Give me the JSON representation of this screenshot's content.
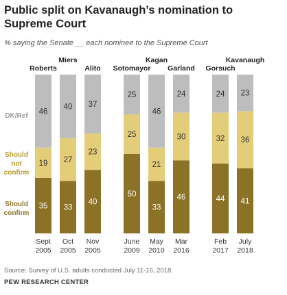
{
  "title": "Public split on Kavanaugh’s nomination to Supreme Court",
  "subtitle": "% saying the Senate __ each nominee to the Supreme Court",
  "source": "Source: Survey of U.S. adults conducted July 11-15, 2018.",
  "org": "PEW RESEARCH CENTER",
  "colors": {
    "confirm": "#8c7226",
    "not_confirm": "#e3cd79",
    "dkref": "#bdbdbd"
  },
  "chart_data": {
    "type": "bar",
    "stacked": true,
    "categories": [
      "Roberts",
      "Miers",
      "Alito",
      "Sotomayor",
      "Kagan",
      "Garland",
      "Gorsuch",
      "Kavanaugh"
    ],
    "dates": [
      [
        "Sept",
        "2005"
      ],
      [
        "Oct",
        "2005"
      ],
      [
        "Nov",
        "2005"
      ],
      [
        "June",
        "2009"
      ],
      [
        "May",
        "2010"
      ],
      [
        "Mar",
        "2016"
      ],
      [
        "Feb",
        "2017"
      ],
      [
        "July",
        "2018"
      ]
    ],
    "series": [
      {
        "name": "Should confirm",
        "label_lines": [
          "Should",
          "confirm"
        ],
        "values": [
          35,
          33,
          40,
          50,
          33,
          46,
          44,
          41
        ]
      },
      {
        "name": "Should not confirm",
        "label_lines": [
          "Should",
          "not",
          "confirm"
        ],
        "values": [
          19,
          27,
          23,
          25,
          21,
          30,
          32,
          36
        ]
      },
      {
        "name": "DK/Ref",
        "label_lines": [
          "DK/Ref"
        ],
        "values": [
          46,
          40,
          37,
          25,
          46,
          24,
          24,
          23
        ]
      }
    ],
    "ylim": [
      0,
      100
    ]
  }
}
